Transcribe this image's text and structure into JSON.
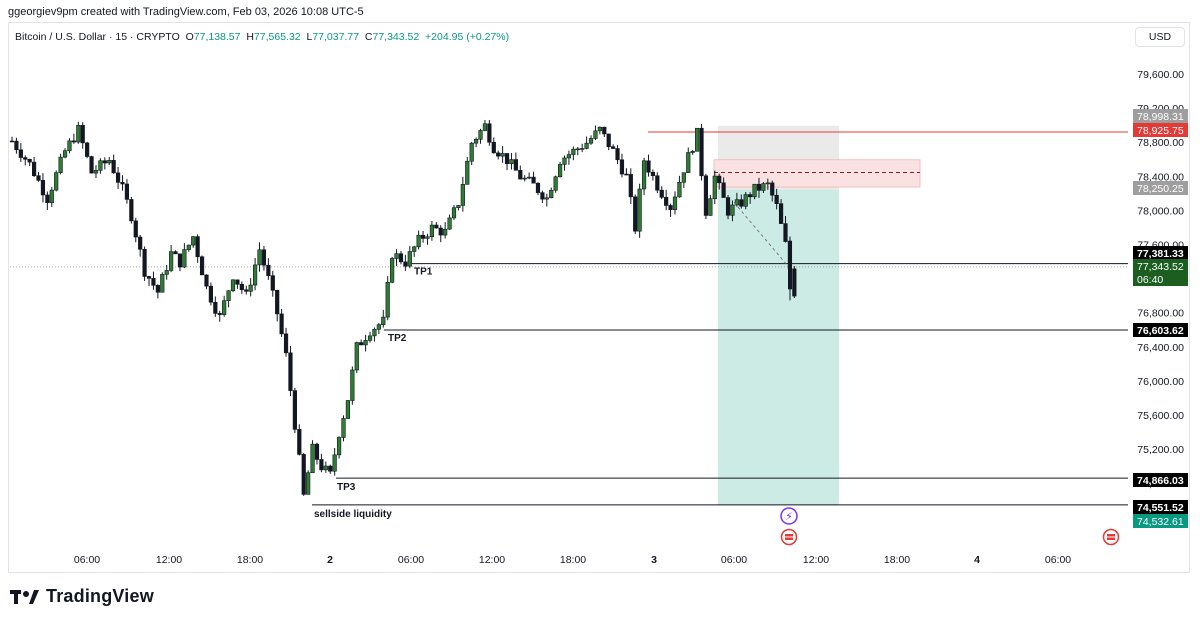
{
  "caption": "ggeorgiev9pm created with TradingView.com, Feb 03, 2026 10:08 UTC-5",
  "legend": {
    "symbol": "Bitcoin / U.S. Dollar · 15 · CRYPTO",
    "open_key": "O",
    "open": "77,138.57",
    "high_key": "H",
    "high": "77,565.32",
    "low_key": "L",
    "low": "77,037.77",
    "close_key": "C",
    "close": "77,343.52",
    "change": "+204.95 (+0.27%)"
  },
  "currency_button": "USD",
  "brand": "TradingView",
  "colors": {
    "up": "#ffffff",
    "down": "#131722",
    "wick": "#131722",
    "green_bar": "#2e7d32",
    "stop_zone": "#e8e8e8",
    "target_zone": "#cdebe5",
    "supply_zone": "#fbe2e2",
    "red_line": "#e53935",
    "teal_label": "#089981"
  },
  "chart_data": {
    "type": "candlestick",
    "title": "Bitcoin / U.S. Dollar · 15 · CRYPTO",
    "ylim": [
      74200,
      79900
    ],
    "y_ticks": [
      "79,600.00",
      "79,200.00",
      "78,800.00",
      "78,400.00",
      "78,000.00",
      "77,600.00",
      "77,200.00",
      "76,800.00",
      "76,400.00",
      "76,000.00",
      "75,600.00",
      "75,200.00",
      "74,800.00"
    ],
    "x_ticks": [
      "06:00",
      "12:00",
      "18:00",
      "2",
      "06:00",
      "12:00",
      "18:00",
      "3",
      "06:00",
      "12:00",
      "18:00",
      "4",
      "06:00"
    ],
    "price_path": [
      {
        "t": 0,
        "p": 78820
      },
      {
        "t": 4,
        "p": 78550
      },
      {
        "t": 8,
        "p": 78150
      },
      {
        "t": 12,
        "p": 78700
      },
      {
        "t": 15,
        "p": 78950
      },
      {
        "t": 18,
        "p": 78450
      },
      {
        "t": 22,
        "p": 78600
      },
      {
        "t": 25,
        "p": 78250
      },
      {
        "t": 27,
        "p": 77950
      },
      {
        "t": 30,
        "p": 77300
      },
      {
        "t": 33,
        "p": 77050
      },
      {
        "t": 36,
        "p": 77500
      },
      {
        "t": 38,
        "p": 77400
      },
      {
        "t": 41,
        "p": 77700
      },
      {
        "t": 44,
        "p": 77100
      },
      {
        "t": 47,
        "p": 76750
      },
      {
        "t": 50,
        "p": 77250
      },
      {
        "t": 53,
        "p": 77000
      },
      {
        "t": 56,
        "p": 77550
      },
      {
        "t": 58,
        "p": 77200
      },
      {
        "t": 60,
        "p": 76800
      },
      {
        "t": 62,
        "p": 76300
      },
      {
        "t": 64,
        "p": 75500
      },
      {
        "t": 66,
        "p": 74650
      },
      {
        "t": 68,
        "p": 75200
      },
      {
        "t": 70,
        "p": 75000
      },
      {
        "t": 72,
        "p": 74900
      },
      {
        "t": 74,
        "p": 75400
      },
      {
        "t": 76,
        "p": 75800
      },
      {
        "t": 78,
        "p": 76400
      },
      {
        "t": 81,
        "p": 76600
      },
      {
        "t": 84,
        "p": 76700
      },
      {
        "t": 86,
        "p": 77500
      },
      {
        "t": 89,
        "p": 77400
      },
      {
        "t": 92,
        "p": 77650
      },
      {
        "t": 95,
        "p": 77800
      },
      {
        "t": 98,
        "p": 77750
      },
      {
        "t": 101,
        "p": 78100
      },
      {
        "t": 104,
        "p": 78800
      },
      {
        "t": 107,
        "p": 79000
      },
      {
        "t": 109,
        "p": 78750
      },
      {
        "t": 112,
        "p": 78600
      },
      {
        "t": 115,
        "p": 78400
      },
      {
        "t": 118,
        "p": 78300
      },
      {
        "t": 121,
        "p": 78150
      },
      {
        "t": 124,
        "p": 78600
      },
      {
        "t": 127,
        "p": 78700
      },
      {
        "t": 130,
        "p": 78800
      },
      {
        "t": 133,
        "p": 78950
      },
      {
        "t": 136,
        "p": 78700
      },
      {
        "t": 139,
        "p": 78400
      },
      {
        "t": 141,
        "p": 77800
      },
      {
        "t": 143,
        "p": 78600
      },
      {
        "t": 146,
        "p": 78300
      },
      {
        "t": 149,
        "p": 78050
      },
      {
        "t": 152,
        "p": 78500
      },
      {
        "t": 155,
        "p": 78900
      },
      {
        "t": 157,
        "p": 78000
      },
      {
        "t": 159,
        "p": 78400
      },
      {
        "t": 162,
        "p": 78000
      },
      {
        "t": 165,
        "p": 78100
      },
      {
        "t": 168,
        "p": 78250
      },
      {
        "t": 171,
        "p": 78300
      },
      {
        "t": 173,
        "p": 78050
      },
      {
        "t": 175,
        "p": 77600
      },
      {
        "t": 177,
        "p": 77050
      }
    ],
    "horizontal_levels": [
      {
        "label": "TP1",
        "price": 77381.33,
        "price_label": "77,381.33"
      },
      {
        "label": "TP2",
        "price": 76603.62,
        "price_label": "76,603.62"
      },
      {
        "label": "TP3",
        "price": 74866.03,
        "price_label": "74,866.03"
      },
      {
        "label": "sellside liquidity",
        "price": 74551.52,
        "price_label": "74,551.52"
      }
    ],
    "price_labels": [
      {
        "text": "78,998.31",
        "price": 78998.31,
        "style": "gray"
      },
      {
        "text": "78,925.75",
        "price": 78925.75,
        "style": "red"
      },
      {
        "text": "78,250.25",
        "price": 78250.25,
        "style": "gray"
      },
      {
        "text": "77,381.33",
        "price": 77381.33,
        "style": "black"
      },
      {
        "text": "77,343.52",
        "price": 77343.52,
        "style": "green"
      },
      {
        "text": "06:40",
        "price": 77150,
        "style": "green"
      },
      {
        "text": "76,603.62",
        "price": 76603.62,
        "style": "black"
      },
      {
        "text": "74,866.03",
        "price": 74866.03,
        "style": "black"
      },
      {
        "text": "74,551.52",
        "price": 74551.52,
        "style": "black"
      },
      {
        "text": "74,532.61",
        "price": 74532.61,
        "style": "teal"
      }
    ],
    "short_position": {
      "entry": 78250.25,
      "stop": 78998.31,
      "target": 74551.52
    },
    "supply_zone": {
      "top": 78600,
      "bottom": 78280,
      "mid": 78450
    },
    "red_level": {
      "price": 78925.75
    }
  }
}
